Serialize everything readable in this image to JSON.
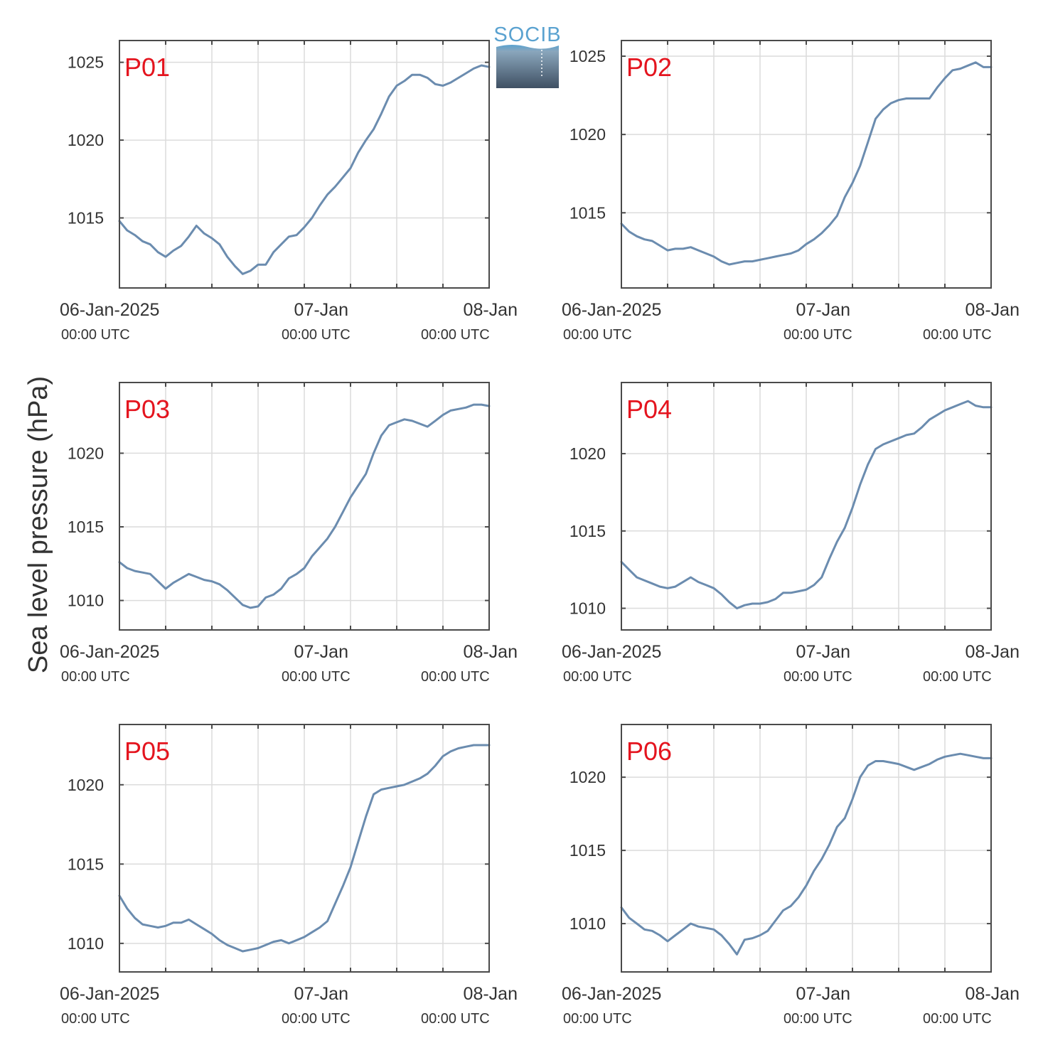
{
  "figure": {
    "ylabel": "Sea level pressure (hPa)",
    "logo_text": "SOCIB",
    "colors": {
      "line": "#6b8caf",
      "station_label": "#e4141e",
      "axes": "#4a4a4a",
      "grid": "#dcdcdc",
      "text": "#333333",
      "logo_top": "#5aa2d0",
      "logo_bottom": "#3f5063"
    }
  },
  "chart_data": [
    {
      "type": "line",
      "title": "P01",
      "x_tick_labels": [
        {
          "line1": "06-Jan-2025",
          "line2": "00:00 UTC"
        },
        {
          "line1": "07-Jan",
          "line2": "00:00 UTC"
        },
        {
          "line1": "08-Jan",
          "line2": "00:00 UTC"
        }
      ],
      "xlim": [
        0,
        48
      ],
      "ylim": [
        1010.5,
        1026.4
      ],
      "yticks": [
        1015,
        1020,
        1025
      ],
      "grid": true,
      "series": [
        {
          "x": [
            0,
            1,
            2,
            3,
            4,
            5,
            6,
            7,
            8,
            9,
            10,
            11,
            12,
            13,
            14,
            15,
            16,
            17,
            18,
            19,
            20,
            21,
            22,
            23,
            24,
            25,
            26,
            27,
            28,
            29,
            30,
            31,
            32,
            33,
            34,
            35,
            36,
            37,
            38,
            39,
            40,
            41,
            42,
            43,
            44,
            45,
            46,
            47,
            48
          ],
          "y": [
            1014.8,
            1014.2,
            1013.9,
            1013.5,
            1013.3,
            1012.8,
            1012.5,
            1012.9,
            1013.2,
            1013.8,
            1014.5,
            1014.0,
            1013.7,
            1013.3,
            1012.5,
            1011.9,
            1011.4,
            1011.6,
            1012.0,
            1012.0,
            1012.8,
            1013.3,
            1013.8,
            1013.9,
            1014.4,
            1015.0,
            1015.8,
            1016.5,
            1017.0,
            1017.6,
            1018.2,
            1019.2,
            1020.0,
            1020.7,
            1021.7,
            1022.8,
            1023.5,
            1023.8,
            1024.2,
            1024.2,
            1024.0,
            1023.6,
            1023.5,
            1023.7,
            1024.0,
            1024.3,
            1024.6,
            1024.8,
            1024.7
          ]
        }
      ]
    },
    {
      "type": "line",
      "title": "P02",
      "x_tick_labels": [
        {
          "line1": "06-Jan-2025",
          "line2": "00:00 UTC"
        },
        {
          "line1": "07-Jan",
          "line2": "00:00 UTC"
        },
        {
          "line1": "08-Jan",
          "line2": "00:00 UTC"
        }
      ],
      "xlim": [
        0,
        48
      ],
      "ylim": [
        1010.2,
        1026.0
      ],
      "yticks": [
        1015,
        1020,
        1025
      ],
      "grid": true,
      "series": [
        {
          "x": [
            0,
            1,
            2,
            3,
            4,
            5,
            6,
            7,
            8,
            9,
            10,
            11,
            12,
            13,
            14,
            15,
            16,
            17,
            18,
            19,
            20,
            21,
            22,
            23,
            24,
            25,
            26,
            27,
            28,
            29,
            30,
            31,
            32,
            33,
            34,
            35,
            36,
            37,
            38,
            39,
            40,
            41,
            42,
            43,
            44,
            45,
            46,
            47,
            48
          ],
          "y": [
            1014.3,
            1013.8,
            1013.5,
            1013.3,
            1013.2,
            1012.9,
            1012.6,
            1012.7,
            1012.7,
            1012.8,
            1012.6,
            1012.4,
            1012.2,
            1011.9,
            1011.7,
            1011.8,
            1011.9,
            1011.9,
            1012.0,
            1012.1,
            1012.2,
            1012.3,
            1012.4,
            1012.6,
            1013.0,
            1013.3,
            1013.7,
            1014.2,
            1014.8,
            1016.0,
            1016.9,
            1018.0,
            1019.5,
            1021.0,
            1021.6,
            1022.0,
            1022.2,
            1022.3,
            1022.3,
            1022.3,
            1022.3,
            1023.0,
            1023.6,
            1024.1,
            1024.2,
            1024.4,
            1024.6,
            1024.3,
            1024.3
          ]
        }
      ]
    },
    {
      "type": "line",
      "title": "P03",
      "x_tick_labels": [
        {
          "line1": "06-Jan-2025",
          "line2": "00:00 UTC"
        },
        {
          "line1": "07-Jan",
          "line2": "00:00 UTC"
        },
        {
          "line1": "08-Jan",
          "line2": "00:00 UTC"
        }
      ],
      "xlim": [
        0,
        48
      ],
      "ylim": [
        1008.0,
        1024.8
      ],
      "yticks": [
        1010,
        1015,
        1020
      ],
      "grid": true,
      "series": [
        {
          "x": [
            0,
            1,
            2,
            3,
            4,
            5,
            6,
            7,
            8,
            9,
            10,
            11,
            12,
            13,
            14,
            15,
            16,
            17,
            18,
            19,
            20,
            21,
            22,
            23,
            24,
            25,
            26,
            27,
            28,
            29,
            30,
            31,
            32,
            33,
            34,
            35,
            36,
            37,
            38,
            39,
            40,
            41,
            42,
            43,
            44,
            45,
            46,
            47,
            48
          ],
          "y": [
            1012.6,
            1012.2,
            1012.0,
            1011.9,
            1011.8,
            1011.3,
            1010.8,
            1011.2,
            1011.5,
            1011.8,
            1011.6,
            1011.4,
            1011.3,
            1011.1,
            1010.7,
            1010.2,
            1009.7,
            1009.5,
            1009.6,
            1010.2,
            1010.4,
            1010.8,
            1011.5,
            1011.8,
            1012.2,
            1013.0,
            1013.6,
            1014.2,
            1015.0,
            1016.0,
            1017.0,
            1017.8,
            1018.6,
            1020.0,
            1021.2,
            1021.9,
            1022.1,
            1022.3,
            1022.2,
            1022.0,
            1021.8,
            1022.2,
            1022.6,
            1022.9,
            1023.0,
            1023.1,
            1023.3,
            1023.3,
            1023.2
          ]
        }
      ]
    },
    {
      "type": "line",
      "title": "P04",
      "x_tick_labels": [
        {
          "line1": "06-Jan-2025",
          "line2": "00:00 UTC"
        },
        {
          "line1": "07-Jan",
          "line2": "00:00 UTC"
        },
        {
          "line1": "08-Jan",
          "line2": "00:00 UTC"
        }
      ],
      "xlim": [
        0,
        48
      ],
      "ylim": [
        1008.6,
        1024.6
      ],
      "yticks": [
        1010,
        1015,
        1020
      ],
      "grid": true,
      "series": [
        {
          "x": [
            0,
            1,
            2,
            3,
            4,
            5,
            6,
            7,
            8,
            9,
            10,
            11,
            12,
            13,
            14,
            15,
            16,
            17,
            18,
            19,
            20,
            21,
            22,
            23,
            24,
            25,
            26,
            27,
            28,
            29,
            30,
            31,
            32,
            33,
            34,
            35,
            36,
            37,
            38,
            39,
            40,
            41,
            42,
            43,
            44,
            45,
            46,
            47,
            48
          ],
          "y": [
            1013.0,
            1012.5,
            1012.0,
            1011.8,
            1011.6,
            1011.4,
            1011.3,
            1011.4,
            1011.7,
            1012.0,
            1011.7,
            1011.5,
            1011.3,
            1010.9,
            1010.4,
            1010.0,
            1010.2,
            1010.3,
            1010.3,
            1010.4,
            1010.6,
            1011.0,
            1011.0,
            1011.1,
            1011.2,
            1011.5,
            1012.0,
            1013.2,
            1014.3,
            1015.2,
            1016.5,
            1018.0,
            1019.3,
            1020.3,
            1020.6,
            1020.8,
            1021.0,
            1021.2,
            1021.3,
            1021.7,
            1022.2,
            1022.5,
            1022.8,
            1023.0,
            1023.2,
            1023.4,
            1023.1,
            1023.0,
            1023.0
          ]
        }
      ]
    },
    {
      "type": "line",
      "title": "P05",
      "x_tick_labels": [
        {
          "line1": "06-Jan-2025",
          "line2": "00:00 UTC"
        },
        {
          "line1": "07-Jan",
          "line2": "00:00 UTC"
        },
        {
          "line1": "08-Jan",
          "line2": "00:00 UTC"
        }
      ],
      "xlim": [
        0,
        48
      ],
      "ylim": [
        1008.2,
        1023.8
      ],
      "yticks": [
        1010,
        1015,
        1020
      ],
      "grid": true,
      "series": [
        {
          "x": [
            0,
            1,
            2,
            3,
            4,
            5,
            6,
            7,
            8,
            9,
            10,
            11,
            12,
            13,
            14,
            15,
            16,
            17,
            18,
            19,
            20,
            21,
            22,
            23,
            24,
            25,
            26,
            27,
            28,
            29,
            30,
            31,
            32,
            33,
            34,
            35,
            36,
            37,
            38,
            39,
            40,
            41,
            42,
            43,
            44,
            45,
            46,
            47,
            48
          ],
          "y": [
            1013.0,
            1012.2,
            1011.6,
            1011.2,
            1011.1,
            1011.0,
            1011.1,
            1011.3,
            1011.3,
            1011.5,
            1011.2,
            1010.9,
            1010.6,
            1010.2,
            1009.9,
            1009.7,
            1009.5,
            1009.6,
            1009.7,
            1009.9,
            1010.1,
            1010.2,
            1010.0,
            1010.2,
            1010.4,
            1010.7,
            1011.0,
            1011.4,
            1012.5,
            1013.6,
            1014.8,
            1016.4,
            1018.0,
            1019.4,
            1019.7,
            1019.8,
            1019.9,
            1020.0,
            1020.2,
            1020.4,
            1020.7,
            1021.2,
            1021.8,
            1022.1,
            1022.3,
            1022.4,
            1022.5,
            1022.5,
            1022.5
          ]
        }
      ]
    },
    {
      "type": "line",
      "title": "P06",
      "x_tick_labels": [
        {
          "line1": "06-Jan-2025",
          "line2": "00:00 UTC"
        },
        {
          "line1": "07-Jan",
          "line2": "00:00 UTC"
        },
        {
          "line1": "08-Jan",
          "line2": "00:00 UTC"
        }
      ],
      "xlim": [
        0,
        48
      ],
      "ylim": [
        1006.7,
        1023.6
      ],
      "yticks": [
        1010,
        1015,
        1020
      ],
      "grid": true,
      "series": [
        {
          "x": [
            0,
            1,
            2,
            3,
            4,
            5,
            6,
            7,
            8,
            9,
            10,
            11,
            12,
            13,
            14,
            15,
            16,
            17,
            18,
            19,
            20,
            21,
            22,
            23,
            24,
            25,
            26,
            27,
            28,
            29,
            30,
            31,
            32,
            33,
            34,
            35,
            36,
            37,
            38,
            39,
            40,
            41,
            42,
            43,
            44,
            45,
            46,
            47,
            48
          ],
          "y": [
            1011.1,
            1010.4,
            1010.0,
            1009.6,
            1009.5,
            1009.2,
            1008.8,
            1009.2,
            1009.6,
            1010.0,
            1009.8,
            1009.7,
            1009.6,
            1009.2,
            1008.6,
            1007.9,
            1008.9,
            1009.0,
            1009.2,
            1009.5,
            1010.2,
            1010.9,
            1011.2,
            1011.8,
            1012.6,
            1013.6,
            1014.4,
            1015.4,
            1016.6,
            1017.2,
            1018.5,
            1020.0,
            1020.8,
            1021.1,
            1021.1,
            1021.0,
            1020.9,
            1020.7,
            1020.5,
            1020.7,
            1020.9,
            1021.2,
            1021.4,
            1021.5,
            1021.6,
            1021.5,
            1021.4,
            1021.3,
            1021.3
          ]
        }
      ]
    }
  ]
}
